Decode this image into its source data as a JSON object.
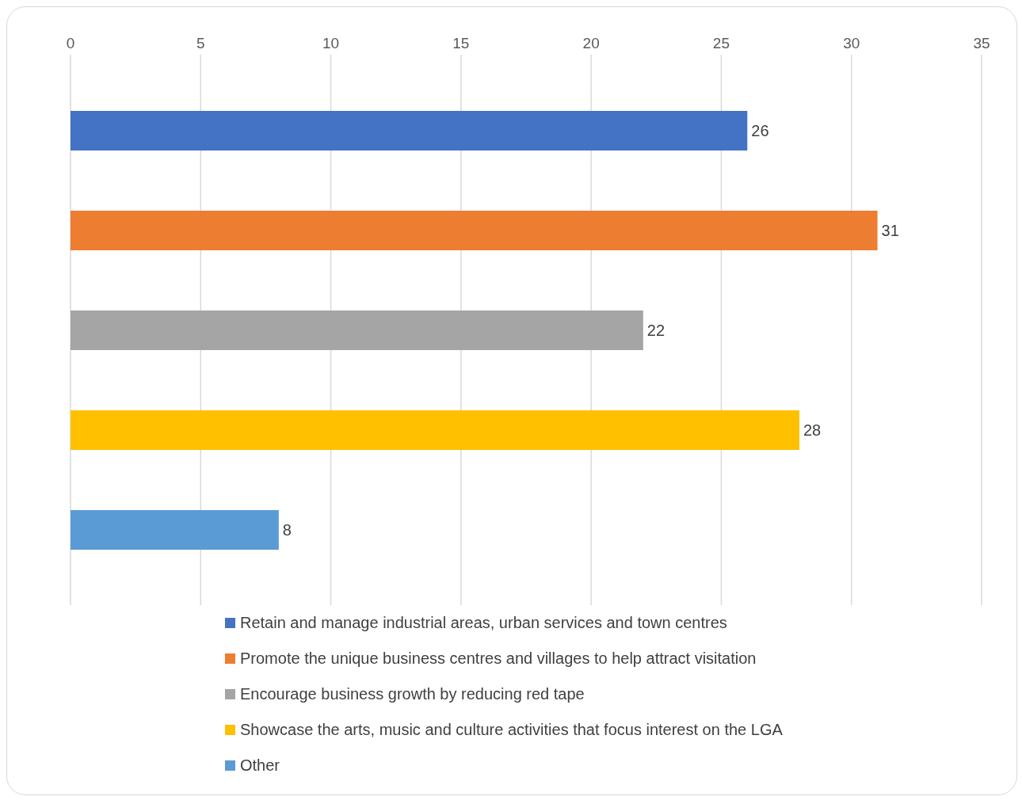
{
  "chart_data": {
    "type": "bar",
    "orientation": "horizontal",
    "categories": [
      null
    ],
    "series": [
      {
        "name": "Retain and manage industrial areas, urban services and town centres",
        "color": "#4472c4",
        "values": [
          26
        ]
      },
      {
        "name": "Promote the unique business centres and villages to help attract visitation",
        "color": "#ed7d31",
        "values": [
          31
        ]
      },
      {
        "name": "Encourage business growth by reducing red tape",
        "color": "#a5a5a5",
        "values": [
          22
        ]
      },
      {
        "name": "Showcase the arts, music and culture activities that focus interest on the LGA",
        "color": "#ffc000",
        "values": [
          28
        ]
      },
      {
        "name": "Other",
        "color": "#5b9bd5",
        "values": [
          8
        ]
      }
    ],
    "xlim": [
      0,
      35
    ],
    "xticks": [
      0,
      5,
      10,
      15,
      20,
      25,
      30,
      35
    ],
    "grid": "x",
    "legend": "bottom",
    "data_labels": true,
    "tick_labels": "x"
  }
}
